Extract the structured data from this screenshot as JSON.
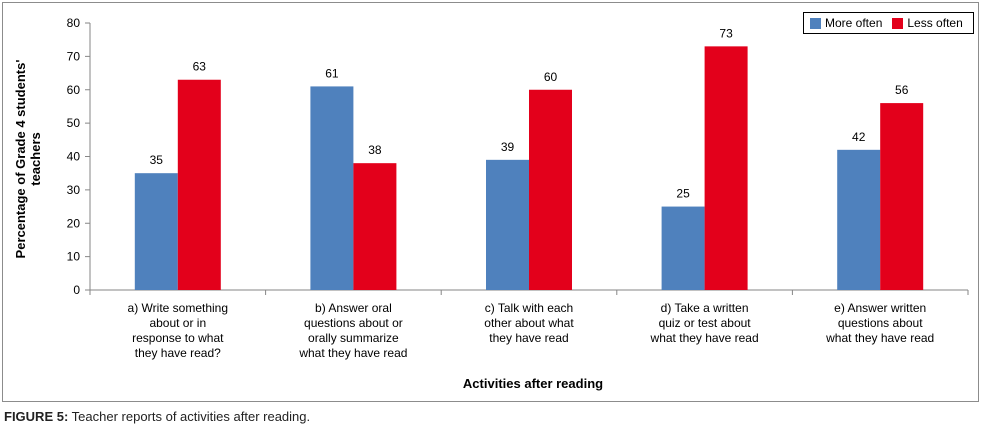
{
  "chart_data": {
    "type": "bar",
    "categories": [
      "a) Write something about or in response to what they have read?",
      "b) Answer oral questions about or orally summarize what they have read",
      "c) Talk with each other about what they have read",
      "d) Take a written quiz or test about what they have read",
      "e) Answer written questions about what they have read"
    ],
    "category_lines": [
      [
        "a) Write something",
        "about or in",
        "response to what",
        "they have read?"
      ],
      [
        "b) Answer oral",
        "questions about or",
        "orally summarize",
        "what they have read"
      ],
      [
        "c) Talk with each",
        "other about what",
        "they have read"
      ],
      [
        "d) Take a written",
        "quiz or test about",
        "what they have read"
      ],
      [
        "e) Answer written",
        "questions about",
        "what they have read"
      ]
    ],
    "series": [
      {
        "name": "More often",
        "values": [
          35,
          61,
          39,
          25,
          42
        ],
        "color": "#4f81bd"
      },
      {
        "name": "Less often",
        "values": [
          63,
          38,
          60,
          73,
          56
        ],
        "color": "#e3001b"
      }
    ],
    "title": "",
    "xlabel": "Activities after reading",
    "ylabel": "Percentage of Grade 4 students' teachers",
    "ylabel_lines": [
      "Percentage of Grade 4 students'",
      "teachers"
    ],
    "ylim": [
      0,
      80
    ],
    "yticks": [
      0,
      10,
      20,
      30,
      40,
      50,
      60,
      70,
      80
    ],
    "grid": false,
    "legend_position": "top-right"
  },
  "caption": {
    "label": "FIGURE 5:",
    "text": " Teacher reports of activities after reading."
  }
}
